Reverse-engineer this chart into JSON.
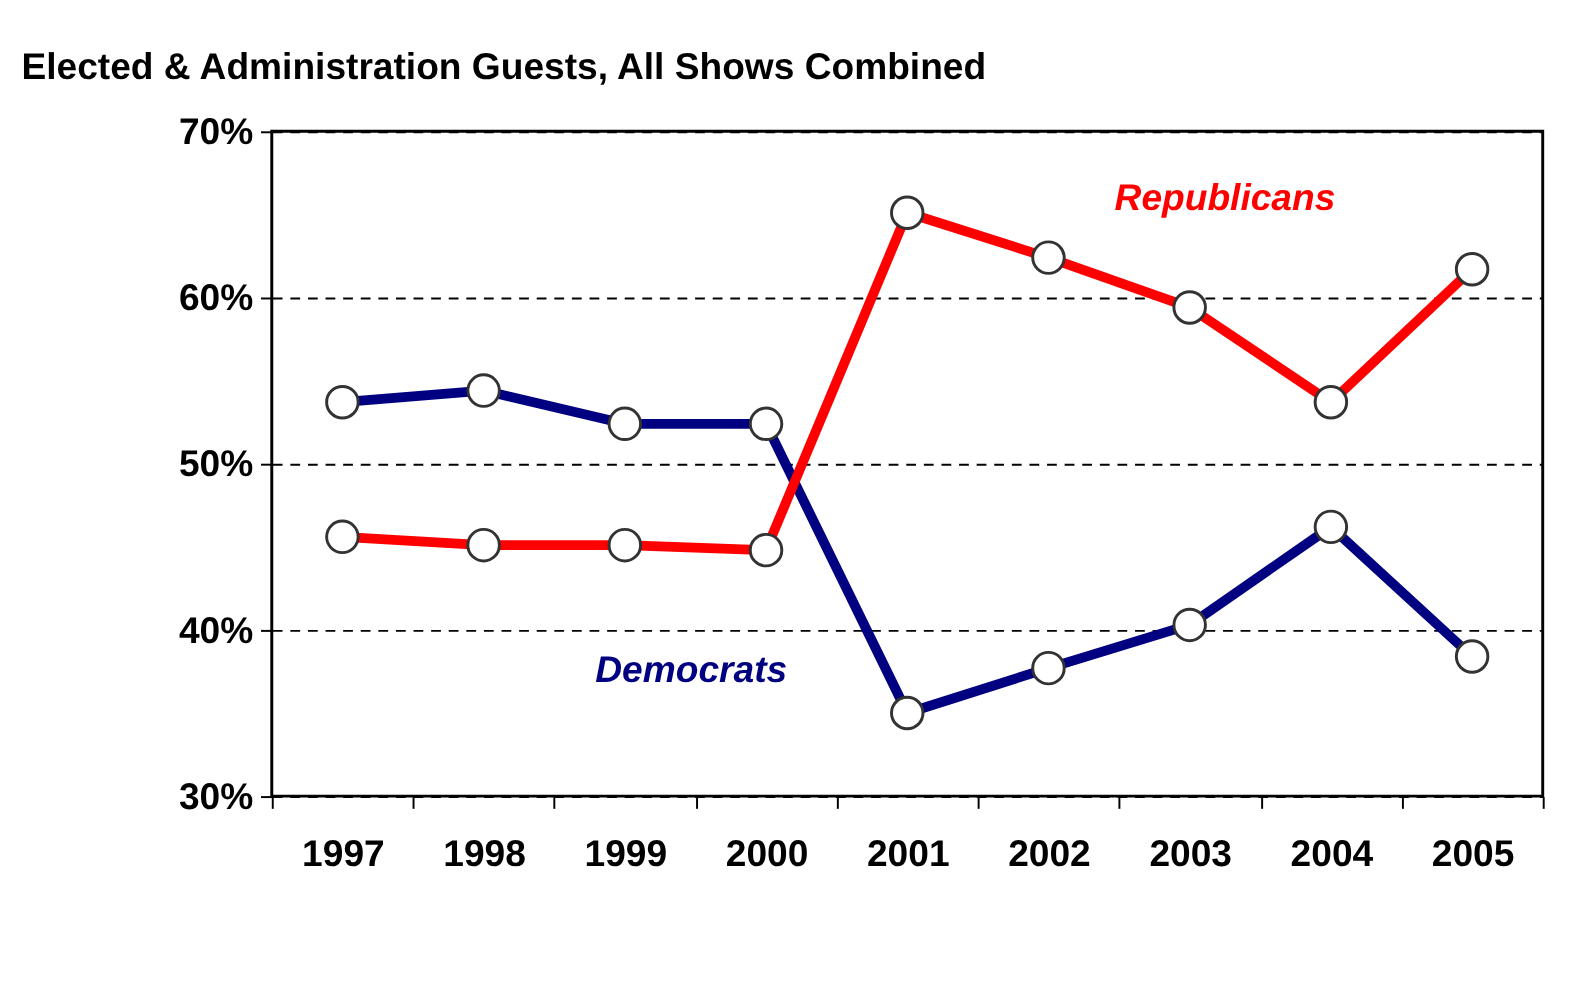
{
  "chart_data": {
    "type": "line",
    "title": "Elected & Administration Guests, All Shows Combined",
    "categories": [
      "1997",
      "1998",
      "1999",
      "2000",
      "2001",
      "2002",
      "2003",
      "2004",
      "2005"
    ],
    "series": [
      {
        "name": "Democrats",
        "color": "#000080",
        "values": [
          53.7,
          54.4,
          52.4,
          52.4,
          35.0,
          37.7,
          40.3,
          46.2,
          38.4
        ]
      },
      {
        "name": "Republicans",
        "color": "#ff0000",
        "values": [
          45.6,
          45.1,
          45.1,
          44.8,
          65.1,
          62.4,
          59.4,
          53.7,
          61.7
        ]
      }
    ],
    "ylim": [
      30,
      70
    ],
    "yticks": [
      {
        "value": 30,
        "label": "30%"
      },
      {
        "value": 40,
        "label": "40%"
      },
      {
        "value": 50,
        "label": "50%"
      },
      {
        "value": 60,
        "label": "60%"
      },
      {
        "value": 70,
        "label": "70%"
      }
    ],
    "grid": "y",
    "line_style": "solid",
    "marker": "circle"
  }
}
